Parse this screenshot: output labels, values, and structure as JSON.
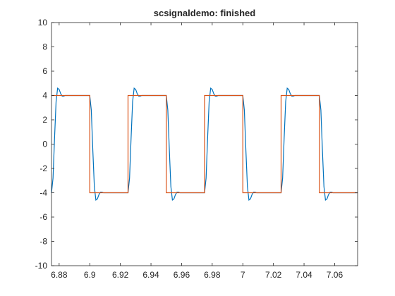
{
  "chart_data": {
    "type": "line",
    "title": "scsignaldemo: finished",
    "xlim": [
      6.875,
      7.075
    ],
    "ylim": [
      -10,
      10
    ],
    "xticks": [
      6.88,
      6.9,
      6.92,
      6.94,
      6.96,
      6.98,
      7,
      7.02,
      7.04,
      7.06
    ],
    "yticks": [
      -10,
      -8,
      -6,
      -4,
      -2,
      0,
      2,
      4,
      6,
      8,
      10
    ],
    "series": [
      {
        "color": "#0072bd",
        "x": [
          6.875,
          6.876,
          6.877,
          6.878,
          6.879,
          6.88,
          6.881,
          6.882,
          6.883,
          6.884,
          6.9,
          6.901,
          6.902,
          6.903,
          6.904,
          6.905,
          6.906,
          6.907,
          6.908,
          6.909,
          6.925,
          6.926,
          6.927,
          6.928,
          6.929,
          6.93,
          6.931,
          6.932,
          6.933,
          6.934,
          6.95,
          6.951,
          6.952,
          6.953,
          6.954,
          6.955,
          6.956,
          6.957,
          6.958,
          6.959,
          6.975,
          6.976,
          6.977,
          6.978,
          6.979,
          6.98,
          6.981,
          6.982,
          6.983,
          6.984,
          7,
          7.001,
          7.002,
          7.003,
          7.004,
          7.005,
          7.006,
          7.007,
          7.008,
          7.009,
          7.025,
          7.026,
          7.027,
          7.028,
          7.029,
          7.03,
          7.031,
          7.032,
          7.033,
          7.034,
          7.05,
          7.051,
          7.052,
          7.053,
          7.054,
          7.055,
          7.056,
          7.057,
          7.058,
          7.059,
          7.075
        ],
        "values": [
          -4,
          -2.8,
          0.5,
          3.5,
          4.6,
          4.5,
          4.15,
          3.95,
          3.95,
          4,
          4,
          2.8,
          -0.5,
          -3.5,
          -4.6,
          -4.5,
          -4.15,
          -3.95,
          -3.95,
          -4,
          -4,
          -2.8,
          0.5,
          3.5,
          4.6,
          4.5,
          4.15,
          3.95,
          3.95,
          4,
          4,
          2.8,
          -0.5,
          -3.5,
          -4.6,
          -4.5,
          -4.15,
          -3.95,
          -3.95,
          -4,
          -4,
          -2.8,
          0.5,
          3.5,
          4.6,
          4.5,
          4.15,
          3.95,
          3.95,
          4,
          4,
          2.8,
          -0.5,
          -3.5,
          -4.6,
          -4.5,
          -4.15,
          -3.95,
          -3.95,
          -4,
          -4,
          -2.8,
          0.5,
          3.5,
          4.6,
          4.5,
          4.15,
          3.95,
          3.95,
          4,
          4,
          2.8,
          -0.5,
          -3.5,
          -4.6,
          -4.5,
          -4.15,
          -3.95,
          -3.95,
          -4,
          -4
        ]
      },
      {
        "color": "#d95319",
        "x": [
          6.875,
          6.9,
          6.9,
          6.925,
          6.925,
          6.95,
          6.95,
          6.975,
          6.975,
          7,
          7,
          7.025,
          7.025,
          7.05,
          7.05,
          7.075
        ],
        "values": [
          4,
          4,
          -4,
          -4,
          4,
          4,
          -4,
          -4,
          4,
          4,
          -4,
          -4,
          4,
          4,
          -4,
          -4
        ]
      }
    ]
  }
}
